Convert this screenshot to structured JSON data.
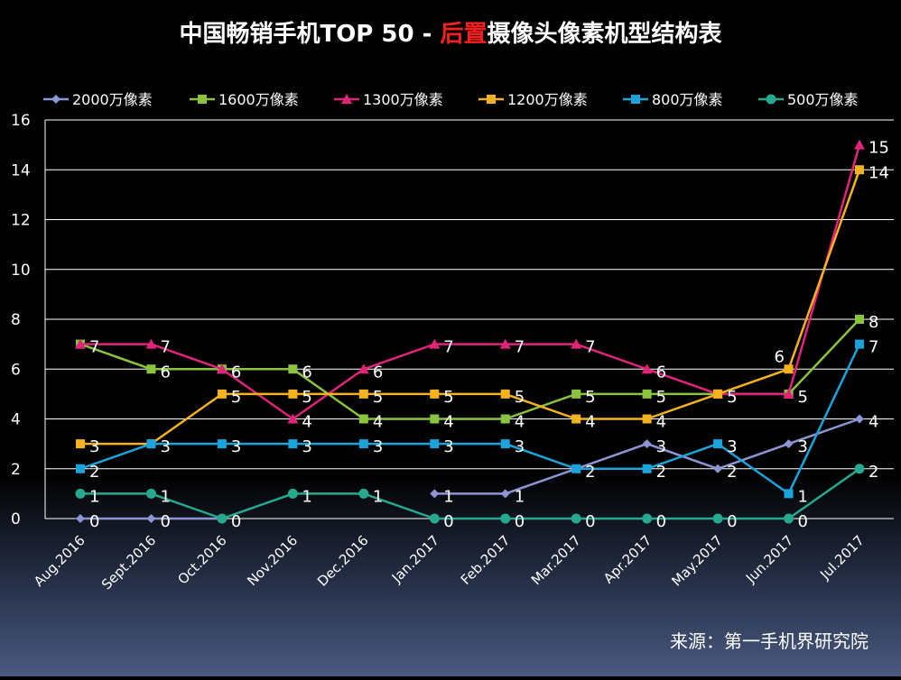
{
  "chart_data": {
    "type": "line",
    "title_prefix": "中国畅销手机TOP 50 - ",
    "title_highlight": "后置",
    "title_suffix": "摄像头像素机型结构表",
    "source": "来源：第一手机界研究院",
    "categories": [
      "Aug.2016",
      "Sept.2016",
      "Oct.2016",
      "Nov.2016",
      "Dec.2016",
      "Jan.2017",
      "Feb.2017",
      "Mar.2017",
      "Apr.2017",
      "May.2017",
      "Jun.2017",
      "Jul.2017"
    ],
    "ylim": [
      0,
      16
    ],
    "yticks": [
      0,
      2,
      4,
      6,
      8,
      10,
      12,
      14,
      16
    ],
    "grid": true,
    "legend_position": "top",
    "series": [
      {
        "name": "2000万像素",
        "color": "#8c96d4",
        "marker": "diamond",
        "values": [
          0,
          0,
          0,
          null,
          null,
          1,
          1,
          2,
          3,
          2,
          3,
          4
        ]
      },
      {
        "name": "1600万像素",
        "color": "#8ac43f",
        "marker": "square",
        "values": [
          7,
          6,
          6,
          6,
          4,
          4,
          4,
          5,
          5,
          5,
          5,
          8
        ]
      },
      {
        "name": "1300万像素",
        "color": "#e0247a",
        "marker": "triangle",
        "values": [
          7,
          7,
          6,
          4,
          6,
          7,
          7,
          7,
          6,
          5,
          5,
          15
        ]
      },
      {
        "name": "1200万像素",
        "color": "#f5b21f",
        "marker": "square",
        "values": [
          3,
          3,
          5,
          5,
          5,
          5,
          5,
          4,
          4,
          5,
          6,
          14
        ]
      },
      {
        "name": "800万像素",
        "color": "#1ba3dc",
        "marker": "square",
        "values": [
          2,
          3,
          3,
          3,
          3,
          3,
          3,
          2,
          2,
          3,
          1,
          7
        ]
      },
      {
        "name": "500万像素",
        "color": "#26a98f",
        "marker": "circle",
        "values": [
          1,
          1,
          0,
          1,
          1,
          0,
          0,
          0,
          0,
          0,
          0,
          2
        ]
      }
    ],
    "data_labels": [
      {
        "cat": 0,
        "value": 7,
        "text": "7"
      },
      {
        "cat": 0,
        "value": 3,
        "text": "3"
      },
      {
        "cat": 0,
        "value": 2,
        "text": "2"
      },
      {
        "cat": 0,
        "value": 1,
        "text": "1"
      },
      {
        "cat": 0,
        "value": 0,
        "text": "0"
      },
      {
        "cat": 1,
        "value": 7,
        "text": "7"
      },
      {
        "cat": 1,
        "value": 6,
        "text": "6"
      },
      {
        "cat": 1,
        "value": 3,
        "text": "3"
      },
      {
        "cat": 1,
        "value": 1,
        "text": "1"
      },
      {
        "cat": 1,
        "value": 0,
        "text": "0"
      },
      {
        "cat": 2,
        "value": 6,
        "text": "6"
      },
      {
        "cat": 2,
        "value": 5,
        "text": "5"
      },
      {
        "cat": 2,
        "value": 3,
        "text": "3"
      },
      {
        "cat": 2,
        "value": 0,
        "text": "0"
      },
      {
        "cat": 3,
        "value": 6,
        "text": "6"
      },
      {
        "cat": 3,
        "value": 5,
        "text": "5"
      },
      {
        "cat": 3,
        "value": 4,
        "text": "4"
      },
      {
        "cat": 3,
        "value": 3,
        "text": "3"
      },
      {
        "cat": 3,
        "value": 1,
        "text": "1"
      },
      {
        "cat": 4,
        "value": 6,
        "text": "6"
      },
      {
        "cat": 4,
        "value": 5,
        "text": "5"
      },
      {
        "cat": 4,
        "value": 4,
        "text": "4"
      },
      {
        "cat": 4,
        "value": 3,
        "text": "3"
      },
      {
        "cat": 4,
        "value": 1,
        "text": "1"
      },
      {
        "cat": 5,
        "value": 7,
        "text": "7"
      },
      {
        "cat": 5,
        "value": 5,
        "text": "5"
      },
      {
        "cat": 5,
        "value": 4,
        "text": "4"
      },
      {
        "cat": 5,
        "value": 3,
        "text": "3"
      },
      {
        "cat": 5,
        "value": 1,
        "text": "1"
      },
      {
        "cat": 5,
        "value": 0,
        "text": "0"
      },
      {
        "cat": 6,
        "value": 7,
        "text": "7"
      },
      {
        "cat": 6,
        "value": 5,
        "text": "5"
      },
      {
        "cat": 6,
        "value": 4,
        "text": "4"
      },
      {
        "cat": 6,
        "value": 3,
        "text": "3"
      },
      {
        "cat": 6,
        "value": 1,
        "text": "1"
      },
      {
        "cat": 6,
        "value": 0,
        "text": "0"
      },
      {
        "cat": 7,
        "value": 7,
        "text": "7"
      },
      {
        "cat": 7,
        "value": 5,
        "text": "5"
      },
      {
        "cat": 7,
        "value": 4,
        "text": "4"
      },
      {
        "cat": 7,
        "value": 2,
        "text": "2"
      },
      {
        "cat": 7,
        "value": 0,
        "text": "0"
      },
      {
        "cat": 8,
        "value": 6,
        "text": "6"
      },
      {
        "cat": 8,
        "value": 5,
        "text": "5"
      },
      {
        "cat": 8,
        "value": 4,
        "text": "4"
      },
      {
        "cat": 8,
        "value": 3,
        "text": "3"
      },
      {
        "cat": 8,
        "value": 2,
        "text": "2"
      },
      {
        "cat": 8,
        "value": 0,
        "text": "0"
      },
      {
        "cat": 9,
        "value": 5,
        "text": "5"
      },
      {
        "cat": 9,
        "value": 3,
        "text": "3"
      },
      {
        "cat": 9,
        "value": 2,
        "text": "2"
      },
      {
        "cat": 9,
        "value": 0,
        "text": "0"
      },
      {
        "cat": 10,
        "value": 6,
        "text": "6",
        "above": true
      },
      {
        "cat": 10,
        "value": 5,
        "text": "5"
      },
      {
        "cat": 10,
        "value": 3,
        "text": "3"
      },
      {
        "cat": 10,
        "value": 1,
        "text": "1"
      },
      {
        "cat": 10,
        "value": 0,
        "text": "0"
      },
      {
        "cat": 11,
        "value": 15,
        "text": "15"
      },
      {
        "cat": 11,
        "value": 14,
        "text": "14"
      },
      {
        "cat": 11,
        "value": 8,
        "text": "8"
      },
      {
        "cat": 11,
        "value": 7,
        "text": "7"
      },
      {
        "cat": 11,
        "value": 4,
        "text": "4"
      },
      {
        "cat": 11,
        "value": 2,
        "text": "2"
      }
    ]
  }
}
